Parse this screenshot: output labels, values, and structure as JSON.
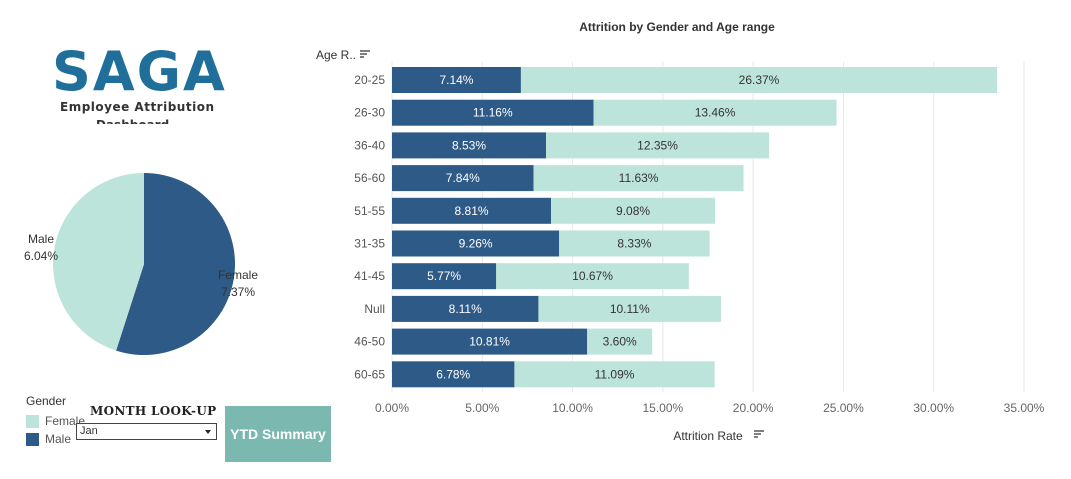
{
  "logo": {
    "name": "SAGA",
    "subtitle": "Employee Attribution",
    "subtitle2": "Dashboard"
  },
  "colors": {
    "male": "#2e5a87",
    "female": "#bde4da",
    "button": "#7ab8b0",
    "logo": "#1f6f9a"
  },
  "pie": {
    "male_label": "Male",
    "male_value": "6.04%",
    "female_label": "Female",
    "female_value": "7.37%"
  },
  "legend": {
    "title": "Gender",
    "items": [
      "Female",
      "Male"
    ]
  },
  "month_lookup": {
    "title": "MONTH LOOK-UP",
    "selected": "Jan"
  },
  "ytd_button": "YTD Summary",
  "chart_data": {
    "type": "bar",
    "orientation": "horizontal",
    "stacked": true,
    "title": "Attrition by Gender and Age range",
    "ylabel": "Age R..",
    "xlabel": "Attrition Rate",
    "categories": [
      "20-25",
      "26-30",
      "36-40",
      "56-60",
      "51-55",
      "31-35",
      "41-45",
      "Null",
      "46-50",
      "60-65"
    ],
    "series": [
      {
        "name": "Male",
        "values": [
          7.14,
          11.16,
          8.53,
          7.84,
          8.81,
          9.26,
          5.77,
          8.11,
          10.81,
          6.78
        ],
        "labels": [
          "7.14%",
          "11.16%",
          "8.53%",
          "7.84%",
          "8.81%",
          "9.26%",
          "5.77%",
          "8.11%",
          "10.81%",
          "6.78%"
        ]
      },
      {
        "name": "Female",
        "values": [
          26.37,
          13.46,
          12.35,
          11.63,
          9.08,
          8.33,
          10.67,
          10.11,
          3.6,
          11.09
        ],
        "labels": [
          "26.37%",
          "13.46%",
          "12.35%",
          "11.63%",
          "9.08%",
          "8.33%",
          "10.67%",
          "10.11%",
          "3.60%",
          "11.09%"
        ]
      }
    ],
    "xlim": [
      0,
      35
    ],
    "xticks": [
      0,
      5,
      10,
      15,
      20,
      25,
      30,
      35
    ],
    "xtick_labels": [
      "0.00%",
      "5.00%",
      "10.00%",
      "15.00%",
      "20.00%",
      "25.00%",
      "30.00%",
      "35.00%"
    ],
    "grid": true
  }
}
